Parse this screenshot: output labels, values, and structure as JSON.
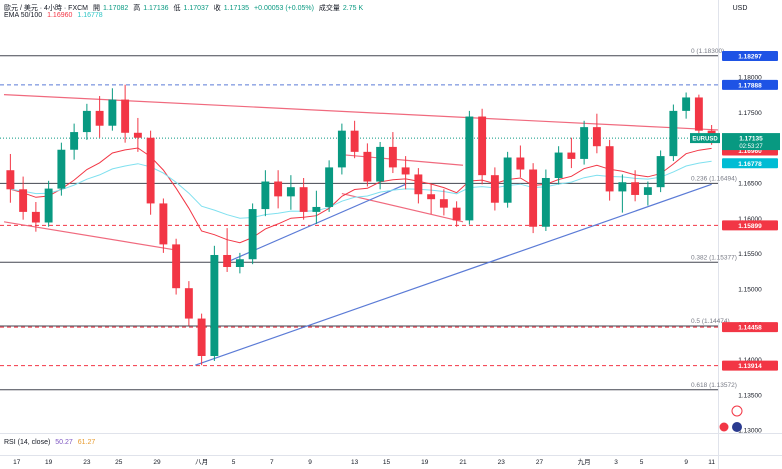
{
  "chart_data": {
    "type": "candlestick",
    "title": "歐元 / 美元 · 4小時 · FXCM",
    "ohlc_labels": [
      "開",
      "高",
      "低",
      "收"
    ],
    "ohlc": {
      "open": "1.17082",
      "high": "1.17136",
      "low": "1.17037",
      "close": "1.17135",
      "change": "+0.00053 (+0.05%)",
      "volume_label": "成交量",
      "volume": "2.75 K"
    },
    "ema": {
      "label": "EMA 50/100",
      "v50": "1.16960",
      "v100": "1.16778"
    },
    "rsi": {
      "label": "RSI (14, close)",
      "value": "50.27",
      "ma": "61.27"
    },
    "currency": "USD",
    "y_ticks": [
      "1.18000",
      "1.17500",
      "1.17000",
      "1.16500",
      "1.16000",
      "1.15500",
      "1.15000",
      "1.14500",
      "1.14000",
      "1.13500",
      "1.13000"
    ],
    "x_ticks": [
      "17",
      "19",
      "23",
      "25",
      "29",
      "八月",
      "5",
      "7",
      "9",
      "13",
      "15",
      "19",
      "21",
      "23",
      "27",
      "九月",
      "3",
      "5",
      "9",
      "11"
    ],
    "x_tick_pos": [
      0.5,
      3,
      6,
      8.5,
      11.5,
      15,
      17.5,
      20.5,
      23.5,
      27,
      29.5,
      32.5,
      35.5,
      38.5,
      41.5,
      45,
      47.5,
      49.5,
      53,
      55
    ],
    "price_tags": [
      {
        "value": "1.18297",
        "color": "#1e53e5"
      },
      {
        "value": "1.17888",
        "color": "#1e53e5"
      },
      {
        "value": "1.16960",
        "color": "#f23645"
      },
      {
        "value": "1.16778",
        "color": "#00bcd4"
      },
      {
        "value": "1.15899",
        "color": "#f23645"
      },
      {
        "value": "1.14458",
        "color": "#f23645"
      },
      {
        "value": "1.13914",
        "color": "#f23645"
      }
    ],
    "last_price": {
      "symbol": "EURUSD",
      "price": "1.17135",
      "countdown": "02:53:27",
      "color": "#089981"
    },
    "fib_labels": [
      {
        "text": "0 (1.18300)",
        "price": 1.183
      },
      {
        "text": "0.236 (1.16494)",
        "price": 1.16494
      },
      {
        "text": "0.382 (1.15377)",
        "price": 1.15377
      },
      {
        "text": "0.5 (1.14474)",
        "price": 1.14474
      },
      {
        "text": "0.618 (1.13572)",
        "price": 1.13572
      }
    ],
    "h_levels": [
      {
        "price": 1.183,
        "style": "solid",
        "color": "#434651"
      },
      {
        "price": 1.17888,
        "style": "dashed",
        "color": "#5b7bd6"
      },
      {
        "price": 1.17135,
        "style": "dotted",
        "color": "#089981"
      },
      {
        "price": 1.16494,
        "style": "solid",
        "color": "#434651"
      },
      {
        "price": 1.15899,
        "style": "dashed",
        "color": "#f23645"
      },
      {
        "price": 1.15377,
        "style": "solid",
        "color": "#434651"
      },
      {
        "price": 1.14474,
        "style": "solid",
        "color": "#434651"
      },
      {
        "price": 1.14458,
        "style": "dashed",
        "color": "#f23645"
      },
      {
        "price": 1.13914,
        "style": "dashed",
        "color": "#f23645"
      },
      {
        "price": 1.13572,
        "style": "solid",
        "color": "#434651"
      }
    ],
    "trendlines": [
      {
        "from": [
          -0.5,
          1.1775
        ],
        "to": [
          55.5,
          1.1725
        ],
        "color": "#f06a7e"
      },
      {
        "from": [
          -0.5,
          1.1595
        ],
        "to": [
          13.0,
          1.1555
        ],
        "color": "#f06a7e"
      },
      {
        "from": [
          26.0,
          1.169
        ],
        "to": [
          35.5,
          1.1675
        ],
        "color": "#f06a7e"
      },
      {
        "from": [
          26.0,
          1.1635
        ],
        "to": [
          35.5,
          1.1595
        ],
        "color": "#f06a7e"
      },
      {
        "from": [
          17.0,
          1.1538
        ],
        "to": [
          31.0,
          1.1648
        ],
        "color": "#5b7bd6"
      },
      {
        "from": [
          14.5,
          1.1392
        ],
        "to": [
          55.0,
          1.1648
        ],
        "color": "#5b7bd6"
      }
    ],
    "ylim": [
      1.1296,
      1.1875
    ],
    "candles": [
      [
        1.1668,
        1.1691,
        1.1622,
        1.1641
      ],
      [
        1.1641,
        1.1659,
        1.1598,
        1.1609
      ],
      [
        1.1609,
        1.1623,
        1.1581,
        1.1594
      ],
      [
        1.1594,
        1.1653,
        1.1588,
        1.1642
      ],
      [
        1.1642,
        1.1707,
        1.1632,
        1.1697
      ],
      [
        1.1697,
        1.1734,
        1.1683,
        1.1722
      ],
      [
        1.1722,
        1.1762,
        1.1711,
        1.1752
      ],
      [
        1.1752,
        1.1773,
        1.1714,
        1.1731
      ],
      [
        1.1731,
        1.1784,
        1.1724,
        1.1768
      ],
      [
        1.1768,
        1.1789,
        1.1707,
        1.1721
      ],
      [
        1.1721,
        1.1742,
        1.1694,
        1.1714
      ],
      [
        1.1714,
        1.1724,
        1.1605,
        1.1621
      ],
      [
        1.1621,
        1.1628,
        1.1551,
        1.1563
      ],
      [
        1.1563,
        1.1571,
        1.1492,
        1.1501
      ],
      [
        1.1501,
        1.1511,
        1.1448,
        1.1458
      ],
      [
        1.1458,
        1.1465,
        1.1392,
        1.1405
      ],
      [
        1.1405,
        1.1561,
        1.1398,
        1.1548
      ],
      [
        1.1548,
        1.1586,
        1.1524,
        1.1531
      ],
      [
        1.1531,
        1.1551,
        1.1522,
        1.1542
      ],
      [
        1.1542,
        1.1621,
        1.1535,
        1.1613
      ],
      [
        1.1613,
        1.1668,
        1.1603,
        1.1652
      ],
      [
        1.1652,
        1.1668,
        1.1614,
        1.1631
      ],
      [
        1.1631,
        1.1661,
        1.1612,
        1.1644
      ],
      [
        1.1644,
        1.1657,
        1.1598,
        1.1609
      ],
      [
        1.1609,
        1.1639,
        1.1592,
        1.1616
      ],
      [
        1.1616,
        1.1682,
        1.1609,
        1.1672
      ],
      [
        1.1672,
        1.1734,
        1.1662,
        1.1724
      ],
      [
        1.1724,
        1.1738,
        1.1685,
        1.1694
      ],
      [
        1.1694,
        1.1706,
        1.1645,
        1.1652
      ],
      [
        1.1652,
        1.1708,
        1.1641,
        1.1701
      ],
      [
        1.1701,
        1.1722,
        1.1664,
        1.1672
      ],
      [
        1.1672,
        1.1688,
        1.1641,
        1.1662
      ],
      [
        1.1662,
        1.1671,
        1.1621,
        1.1634
      ],
      [
        1.1634,
        1.1649,
        1.1606,
        1.1627
      ],
      [
        1.1627,
        1.1641,
        1.1604,
        1.1615
      ],
      [
        1.1615,
        1.1624,
        1.1588,
        1.1597
      ],
      [
        1.1597,
        1.1752,
        1.1591,
        1.1744
      ],
      [
        1.1744,
        1.1755,
        1.1648,
        1.1661
      ],
      [
        1.1661,
        1.1672,
        1.1611,
        1.1622
      ],
      [
        1.1622,
        1.1694,
        1.1615,
        1.1686
      ],
      [
        1.1686,
        1.1703,
        1.1658,
        1.1669
      ],
      [
        1.1669,
        1.1678,
        1.1579,
        1.1588
      ],
      [
        1.1588,
        1.1669,
        1.1582,
        1.1657
      ],
      [
        1.1657,
        1.1702,
        1.1648,
        1.1693
      ],
      [
        1.1693,
        1.1714,
        1.1671,
        1.1684
      ],
      [
        1.1684,
        1.1738,
        1.1676,
        1.1729
      ],
      [
        1.1729,
        1.1748,
        1.1692,
        1.1702
      ],
      [
        1.1702,
        1.1711,
        1.1625,
        1.1638
      ],
      [
        1.1638,
        1.1662,
        1.1608,
        1.1651
      ],
      [
        1.1651,
        1.1668,
        1.1624,
        1.1633
      ],
      [
        1.1633,
        1.1652,
        1.1618,
        1.1644
      ],
      [
        1.1644,
        1.1696,
        1.1637,
        1.1688
      ],
      [
        1.1688,
        1.1761,
        1.1681,
        1.1752
      ],
      [
        1.1752,
        1.1778,
        1.1741,
        1.1771
      ],
      [
        1.1771,
        1.1775,
        1.1713,
        1.1724
      ],
      [
        1.1724,
        1.1732,
        1.1704,
        1.1713
      ]
    ]
  }
}
